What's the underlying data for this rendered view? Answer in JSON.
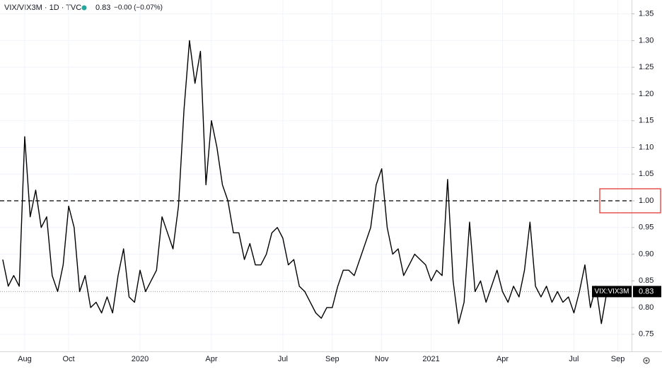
{
  "chart_data": {
    "type": "line",
    "title": "VIX/VIX3M · 1D · TVC",
    "price": "0.83",
    "change": "−0.00 (−0.07%)",
    "status_color": "#26a69a",
    "categories": [
      null,
      null,
      null,
      null,
      "Aug",
      null,
      null,
      null,
      null,
      null,
      null,
      null,
      "Oct",
      null,
      null,
      null,
      null,
      null,
      null,
      null,
      null,
      null,
      null,
      null,
      null,
      "2020",
      null,
      null,
      null,
      null,
      null,
      null,
      null,
      null,
      null,
      null,
      null,
      null,
      "Apr",
      null,
      null,
      null,
      null,
      null,
      null,
      null,
      null,
      null,
      null,
      null,
      null,
      "Jul",
      null,
      null,
      null,
      null,
      null,
      null,
      null,
      null,
      "Sep",
      null,
      null,
      null,
      null,
      null,
      null,
      null,
      null,
      "Nov",
      null,
      null,
      null,
      null,
      null,
      null,
      null,
      null,
      "2021",
      null,
      null,
      null,
      null,
      null,
      null,
      null,
      null,
      null,
      null,
      null,
      null,
      "Apr",
      null,
      null,
      null,
      null,
      null,
      null,
      null,
      null,
      null,
      null,
      null,
      null,
      "Jul",
      null,
      null,
      null,
      null,
      null,
      null,
      null,
      "Sep",
      null,
      null
    ],
    "series": [
      {
        "name": "VIX:VIX3M",
        "color": "#000000",
        "values": [
          0.89,
          0.84,
          0.86,
          0.84,
          1.12,
          0.97,
          1.02,
          0.95,
          0.97,
          0.86,
          0.83,
          0.88,
          0.99,
          0.95,
          0.83,
          0.86,
          0.8,
          0.81,
          0.79,
          0.82,
          0.79,
          0.86,
          0.91,
          0.82,
          0.81,
          0.87,
          0.83,
          0.85,
          0.87,
          0.97,
          0.94,
          0.91,
          0.99,
          1.17,
          1.3,
          1.22,
          1.28,
          1.03,
          1.15,
          1.1,
          1.03,
          1.0,
          0.94,
          0.94,
          0.89,
          0.92,
          0.88,
          0.88,
          0.9,
          0.94,
          0.95,
          0.93,
          0.88,
          0.89,
          0.84,
          0.83,
          0.81,
          0.79,
          0.78,
          0.8,
          0.8,
          0.84,
          0.87,
          0.87,
          0.86,
          0.89,
          0.92,
          0.95,
          1.03,
          1.06,
          0.95,
          0.9,
          0.91,
          0.86,
          0.88,
          0.9,
          0.89,
          0.88,
          0.85,
          0.87,
          0.86,
          1.04,
          0.85,
          0.77,
          0.81,
          0.96,
          0.83,
          0.85,
          0.81,
          0.84,
          0.87,
          0.83,
          0.81,
          0.84,
          0.82,
          0.87,
          0.96,
          0.84,
          0.82,
          0.84,
          0.81,
          0.83,
          0.81,
          0.82,
          0.79,
          0.83,
          0.88,
          0.8,
          0.84,
          0.77,
          0.83,
          null,
          null,
          null,
          null
        ]
      }
    ],
    "ylim": [
      0.718,
      1.376
    ],
    "yticks": [
      0.75,
      {
        "value": 0.8,
        "label": "0.80"
      },
      0.85,
      {
        "value": 0.9,
        "label": "0.90"
      },
      0.95,
      {
        "value": 1.0,
        "label": "1.00"
      },
      1.05,
      {
        "value": 1.1,
        "label": "1.10"
      },
      1.15,
      {
        "value": 1.2,
        "label": "1.20"
      },
      1.25,
      {
        "value": 1.3,
        "label": "1.30"
      },
      1.35
    ],
    "grid": true,
    "reference_lines": [
      {
        "value": 1.0,
        "style": "dashed",
        "color": "#000000",
        "highlight_color": "#e53935"
      },
      {
        "value": 0.83,
        "label": "0.83",
        "name": "VIX:VIX3M",
        "style": "dotted",
        "color": "#9e9e9e"
      }
    ]
  }
}
